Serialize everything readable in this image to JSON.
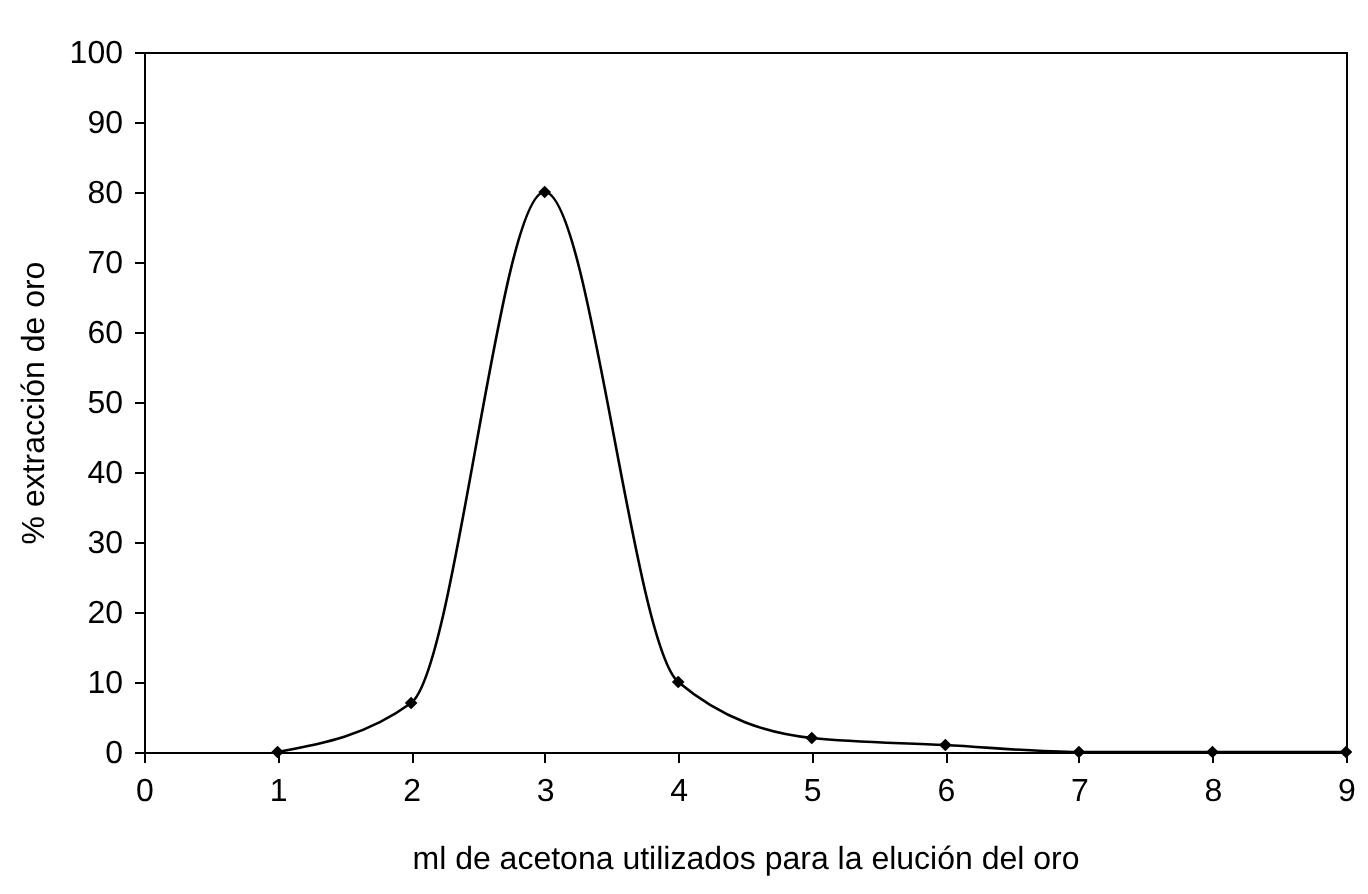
{
  "chart_data": {
    "type": "line",
    "xlabel": "ml de acetona utilizados para la elución del oro",
    "ylabel": "% extracción de oro",
    "x": [
      1,
      2,
      3,
      4,
      5,
      6,
      7,
      8,
      9
    ],
    "series": [
      {
        "color": "#000000",
        "values": [
          0,
          7,
          80,
          10,
          2,
          1,
          0,
          0,
          0
        ]
      }
    ],
    "xlim": [
      0,
      9
    ],
    "xticks": [
      0,
      1,
      2,
      3,
      4,
      5,
      6,
      7,
      8,
      9
    ],
    "ylim": [
      0,
      100
    ],
    "yticks": [
      0,
      10,
      20,
      30,
      40,
      50,
      60,
      70,
      80,
      90,
      100
    ],
    "grid": false,
    "legend": false,
    "marker": "diamond",
    "line_style": "solid"
  }
}
